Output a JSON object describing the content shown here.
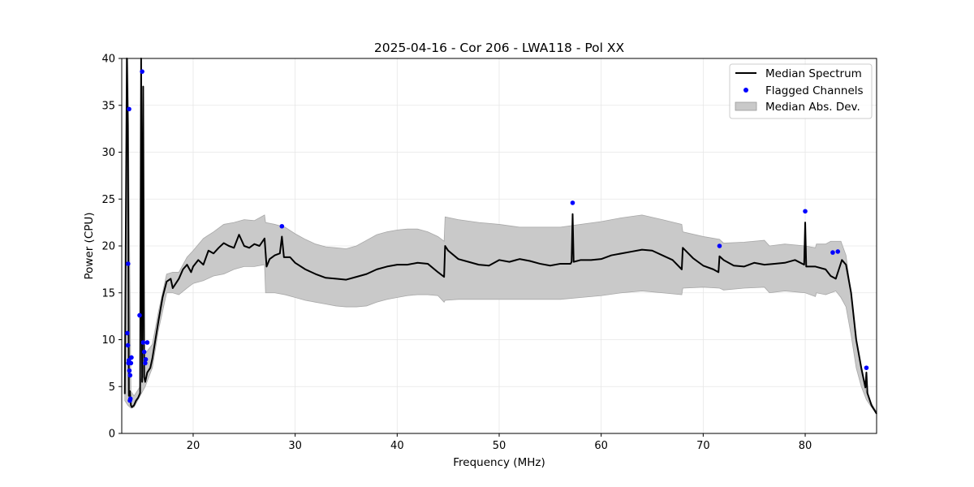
{
  "chart_data": {
    "type": "line",
    "title": "2025-04-16 - Cor 206 - LWA118 - Pol XX",
    "xlabel": "Frequency (MHz)",
    "ylabel": "Power (CPU)",
    "xlim": [
      13,
      87
    ],
    "ylim": [
      0,
      40
    ],
    "xticks": [
      20,
      30,
      40,
      50,
      60,
      70,
      80
    ],
    "yticks": [
      0,
      5,
      10,
      15,
      20,
      25,
      30,
      35,
      40
    ],
    "grid": true,
    "legend_position": "top-right",
    "legend": [
      {
        "label": "Median Spectrum",
        "kind": "line",
        "color": "#000000"
      },
      {
        "label": "Flagged Channels",
        "kind": "marker",
        "color": "#0000ff"
      },
      {
        "label": "Median Abs. Dev.",
        "kind": "band",
        "color": "#c9c9c9"
      }
    ],
    "series": [
      {
        "name": "Median Spectrum",
        "kind": "line",
        "color": "#000000",
        "x": [
          13.3,
          13.5,
          13.6,
          13.7,
          13.8,
          13.9,
          14.0,
          14.2,
          14.4,
          14.6,
          14.8,
          14.9,
          15.0,
          15.1,
          15.2,
          15.3,
          15.5,
          15.8,
          16.0,
          16.3,
          16.6,
          17.0,
          17.4,
          17.8,
          18.0,
          18.3,
          18.6,
          19.0,
          19.4,
          19.8,
          20.0,
          20.5,
          21.0,
          21.5,
          22.0,
          22.5,
          23.0,
          23.5,
          24.0,
          24.5,
          25.0,
          25.5,
          26.0,
          26.5,
          27.0,
          27.2,
          27.5,
          28.0,
          28.5,
          28.7,
          28.9,
          29.5,
          30.0,
          31.0,
          32.0,
          33.0,
          34.0,
          35.0,
          36.0,
          37.0,
          38.0,
          39.0,
          40.0,
          41.0,
          42.0,
          43.0,
          44.0,
          44.6,
          44.7,
          45.0,
          46.0,
          47.0,
          48.0,
          49.0,
          50.0,
          51.0,
          52.0,
          53.0,
          54.0,
          55.0,
          56.0,
          57.0,
          57.1,
          57.2,
          57.3,
          58.0,
          59.0,
          60.0,
          61.0,
          62.0,
          63.0,
          64.0,
          65.0,
          66.0,
          67.0,
          67.9,
          68.0,
          69.0,
          70.0,
          71.0,
          71.5,
          71.6,
          72.0,
          73.0,
          74.0,
          75.0,
          76.0,
          77.0,
          78.0,
          79.0,
          79.9,
          80.0,
          80.1,
          81.0,
          82.0,
          82.5,
          83.0,
          83.3,
          83.6,
          84.0,
          84.5,
          85.0,
          85.5,
          85.9,
          86.0,
          86.1,
          86.5,
          87.0
        ],
        "y": [
          4.2,
          40.0,
          33.0,
          4.0,
          4.5,
          3.0,
          2.8,
          3.0,
          3.5,
          3.8,
          4.3,
          40.0,
          5.5,
          37.0,
          6.0,
          5.5,
          6.5,
          7.0,
          8.0,
          10.0,
          12.0,
          14.5,
          16.2,
          16.5,
          15.5,
          16.0,
          16.5,
          17.5,
          18.0,
          17.2,
          17.8,
          18.5,
          18.0,
          19.5,
          19.2,
          19.8,
          20.3,
          20.0,
          19.8,
          21.2,
          20.0,
          19.8,
          20.2,
          20.0,
          20.8,
          17.8,
          18.6,
          19.0,
          19.2,
          21.0,
          18.8,
          18.8,
          18.2,
          17.5,
          17.0,
          16.6,
          16.5,
          16.4,
          16.7,
          17.0,
          17.5,
          17.8,
          18.0,
          18.0,
          18.2,
          18.1,
          17.2,
          16.7,
          20.0,
          19.5,
          18.6,
          18.3,
          18.0,
          17.9,
          18.5,
          18.3,
          18.6,
          18.4,
          18.1,
          17.9,
          18.1,
          18.1,
          18.3,
          23.4,
          18.3,
          18.5,
          18.5,
          18.6,
          19.0,
          19.2,
          19.4,
          19.6,
          19.5,
          19.0,
          18.5,
          17.5,
          19.8,
          18.7,
          17.9,
          17.5,
          17.2,
          18.9,
          18.5,
          17.9,
          17.8,
          18.2,
          18.0,
          18.1,
          18.2,
          18.5,
          18.0,
          22.5,
          17.8,
          17.8,
          17.5,
          16.8,
          16.5,
          17.5,
          18.5,
          18.0,
          15.0,
          10.0,
          7.0,
          4.9,
          6.5,
          4.3,
          3.0,
          2.1
        ]
      },
      {
        "name": "Median Abs. Dev.",
        "kind": "band",
        "color": "#c9c9c9",
        "x": [
          13.3,
          13.6,
          13.9,
          14.2,
          14.8,
          15.3,
          16.0,
          16.6,
          17.4,
          18.0,
          18.6,
          19.4,
          20.0,
          21.0,
          22.0,
          23.0,
          24.0,
          25.0,
          26.0,
          27.0,
          27.1,
          28.0,
          29.0,
          30.0,
          31.0,
          32.0,
          33.0,
          34.0,
          35.0,
          36.0,
          37.0,
          38.0,
          39.0,
          40.0,
          41.0,
          42.0,
          43.0,
          44.0,
          44.6,
          44.7,
          46.0,
          48.0,
          50.0,
          52.0,
          54.0,
          56.0,
          58.0,
          60.0,
          62.0,
          64.0,
          66.0,
          67.9,
          68.0,
          70.0,
          71.6,
          72.0,
          74.0,
          76.0,
          76.5,
          78.0,
          80.0,
          81.0,
          81.1,
          82.0,
          82.5,
          83.0,
          83.5,
          84.0,
          84.5,
          85.0,
          85.5,
          86.0,
          86.5,
          87.0
        ],
        "lower": [
          3.5,
          3.0,
          2.7,
          2.8,
          4.0,
          5.0,
          7.0,
          11.0,
          15.0,
          15.0,
          14.8,
          15.5,
          16.0,
          16.3,
          16.8,
          17.0,
          17.5,
          17.8,
          17.8,
          18.0,
          15.0,
          15.0,
          14.8,
          14.5,
          14.2,
          14.0,
          13.8,
          13.6,
          13.5,
          13.5,
          13.6,
          14.0,
          14.3,
          14.5,
          14.7,
          14.8,
          14.8,
          14.7,
          14.0,
          14.2,
          14.3,
          14.3,
          14.3,
          14.3,
          14.3,
          14.3,
          14.5,
          14.7,
          15.0,
          15.2,
          15.0,
          14.8,
          15.5,
          15.6,
          15.5,
          15.3,
          15.5,
          15.6,
          15.0,
          15.2,
          15.0,
          14.6,
          15.0,
          14.8,
          15.0,
          15.2,
          14.5,
          13.5,
          10.5,
          7.0,
          5.0,
          3.6,
          2.8,
          2.1
        ],
        "upper": [
          5.0,
          40.0,
          4.5,
          4.0,
          5.0,
          8.5,
          9.5,
          13.0,
          17.0,
          17.2,
          17.2,
          18.8,
          19.5,
          20.8,
          21.5,
          22.3,
          22.5,
          22.8,
          22.7,
          23.3,
          22.5,
          22.3,
          22.0,
          21.3,
          20.7,
          20.2,
          19.9,
          19.8,
          19.7,
          20.0,
          20.6,
          21.2,
          21.5,
          21.7,
          21.8,
          21.8,
          21.5,
          21.0,
          20.5,
          23.1,
          22.8,
          22.5,
          22.3,
          22.0,
          22.0,
          22.0,
          22.3,
          22.6,
          23.0,
          23.3,
          22.8,
          22.3,
          21.5,
          21.0,
          20.7,
          20.3,
          20.4,
          20.6,
          20.0,
          20.2,
          20.0,
          19.8,
          20.2,
          20.2,
          20.5,
          20.5,
          20.5,
          19.0,
          15.0,
          10.0,
          6.5,
          4.4,
          3.2,
          2.3
        ]
      },
      {
        "name": "Flagged Channels",
        "kind": "scatter",
        "color": "#0000ff",
        "x": [
          13.55,
          13.6,
          13.62,
          13.65,
          13.7,
          13.72,
          13.75,
          13.8,
          13.82,
          13.85,
          13.9,
          13.95,
          14.75,
          15.0,
          15.1,
          15.2,
          15.3,
          15.35,
          15.5,
          28.7,
          57.2,
          71.6,
          80.0,
          82.7,
          83.2
        ],
        "y": [
          10.7,
          9.4,
          18.1,
          7.5,
          7.8,
          34.6,
          6.7,
          3.5,
          6.2,
          3.7,
          7.5,
          8.1,
          12.6,
          38.6,
          9.7,
          8.7,
          7.5,
          7.9,
          9.7,
          22.1,
          24.6,
          20.0,
          23.7,
          19.3,
          19.4
        ]
      },
      {
        "name": "Flagged Channels (cont.)",
        "kind": "scatter",
        "color": "#0000ff",
        "x": [
          86.0
        ],
        "y": [
          7.0
        ]
      }
    ]
  }
}
